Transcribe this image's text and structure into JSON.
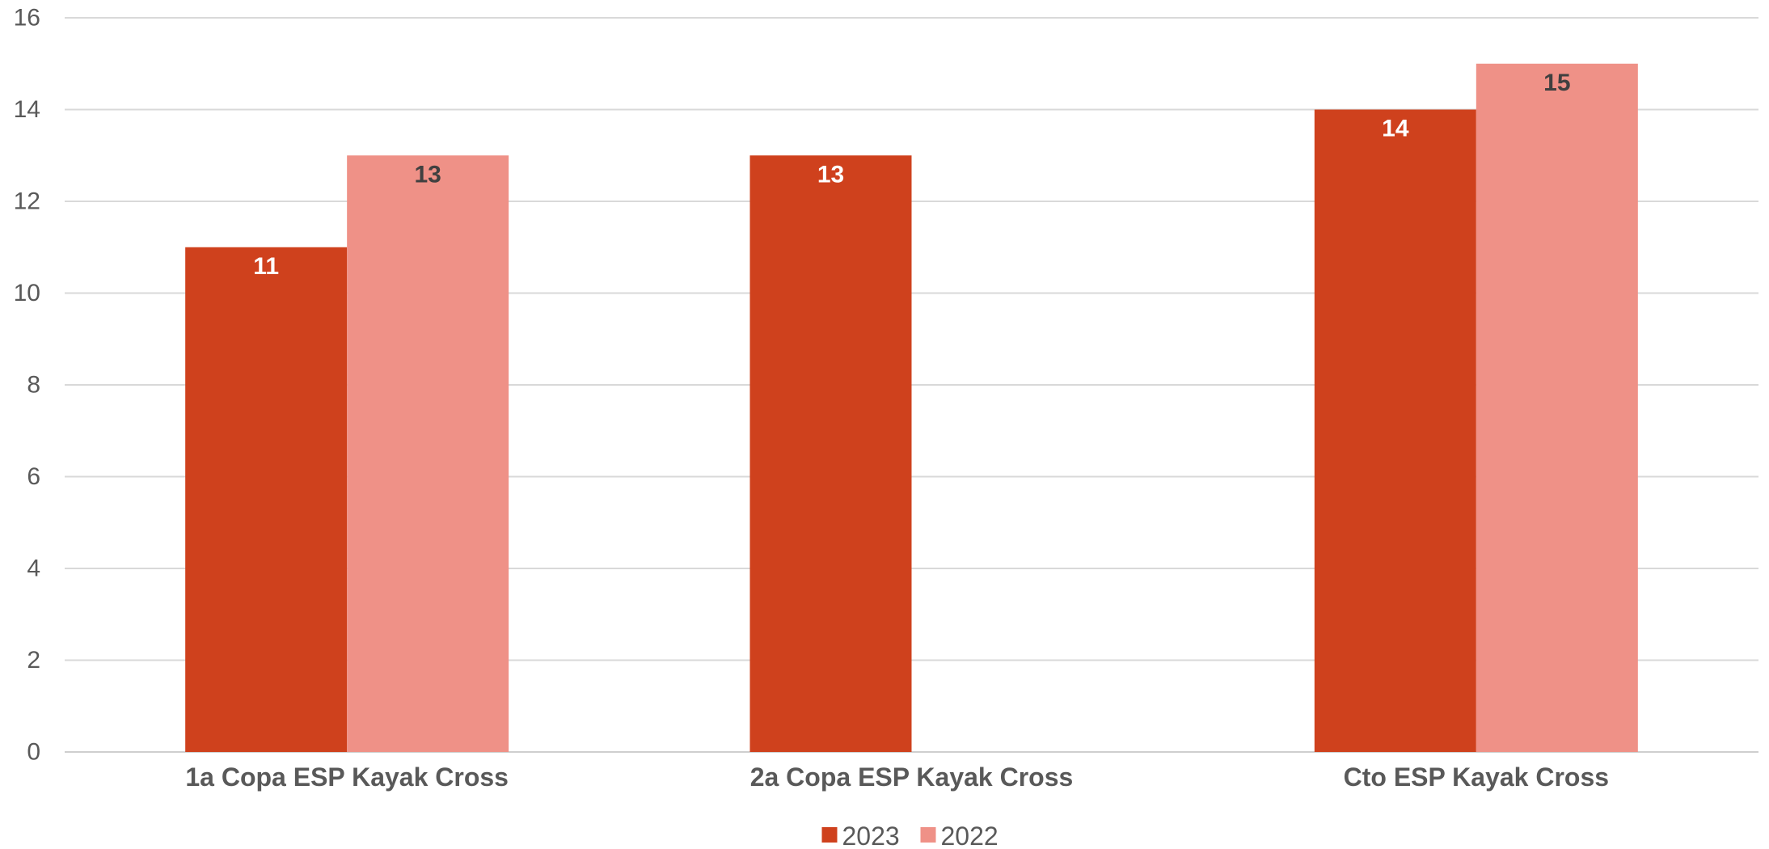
{
  "chart_data": {
    "type": "bar",
    "title": "",
    "xlabel": "",
    "ylabel": "",
    "categories": [
      "1a Copa ESP Kayak Cross",
      "2a Copa ESP Kayak Cross",
      "Cto ESP Kayak Cross"
    ],
    "series": [
      {
        "name": "2023",
        "color": "#CF411D",
        "label_color": "#ffffff",
        "values": [
          11,
          13,
          14
        ]
      },
      {
        "name": "2022",
        "color": "#EF9187",
        "label_color": "#404040",
        "values": [
          13,
          null,
          15
        ]
      }
    ],
    "ylim": [
      0,
      16
    ],
    "yticks": [
      0,
      2,
      4,
      6,
      8,
      10,
      12,
      14,
      16
    ],
    "grid": true,
    "legend": "bottom-center",
    "data_labels": "inside-end"
  }
}
